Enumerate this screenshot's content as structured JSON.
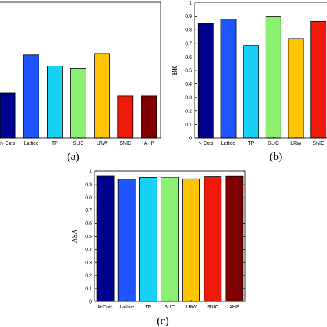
{
  "chart_data": [
    {
      "type": "bar",
      "panel_label": "(a)",
      "categories": [
        "N-Cuts",
        "Lattice",
        "TP",
        "SLIC",
        "LRW",
        "SNIC",
        "AHP"
      ],
      "values": [
        0.33,
        0.61,
        0.53,
        0.51,
        0.62,
        0.31,
        0.31
      ],
      "colors": [
        "#00008f",
        "#1f55ff",
        "#18d2f6",
        "#8cf071",
        "#ffc400",
        "#f01a0a",
        "#7f0000"
      ],
      "ylabel": "",
      "ylim": [
        0,
        1
      ],
      "grid": false
    },
    {
      "type": "bar",
      "panel_label": "(b)",
      "categories": [
        "N-Cuts",
        "Lattice",
        "TP",
        "SLIC",
        "LRW",
        "SNIC"
      ],
      "values": [
        0.85,
        0.88,
        0.685,
        0.9,
        0.735,
        0.86
      ],
      "colors": [
        "#00008f",
        "#1f55ff",
        "#18d2f6",
        "#8cf071",
        "#ffc400",
        "#f01a0a"
      ],
      "ylabel": "BR",
      "ylim": [
        0,
        1
      ],
      "yticks": [
        "0",
        "0.1",
        "0.2",
        "0.3",
        "0.4",
        "0.5",
        "0.6",
        "0.7",
        "0.8",
        "0.9",
        "1"
      ],
      "grid": false
    },
    {
      "type": "bar",
      "panel_label": "(c)",
      "categories": [
        "N-Cuts",
        "Lattice",
        "TP",
        "SLIC",
        "LRW",
        "SNIC",
        "AHP"
      ],
      "values": [
        0.963,
        0.938,
        0.95,
        0.952,
        0.94,
        0.96,
        0.962
      ],
      "colors": [
        "#00008f",
        "#1f55ff",
        "#18d2f6",
        "#8cf071",
        "#ffc400",
        "#f01a0a",
        "#7f0000"
      ],
      "ylabel": "ASA",
      "ylim": [
        0,
        1
      ],
      "yticks": [
        "0",
        "0.1",
        "0.2",
        "0.3",
        "0.4",
        "0.5",
        "0.6",
        "0.7",
        "0.8",
        "0.9",
        "1"
      ],
      "grid": false
    }
  ]
}
